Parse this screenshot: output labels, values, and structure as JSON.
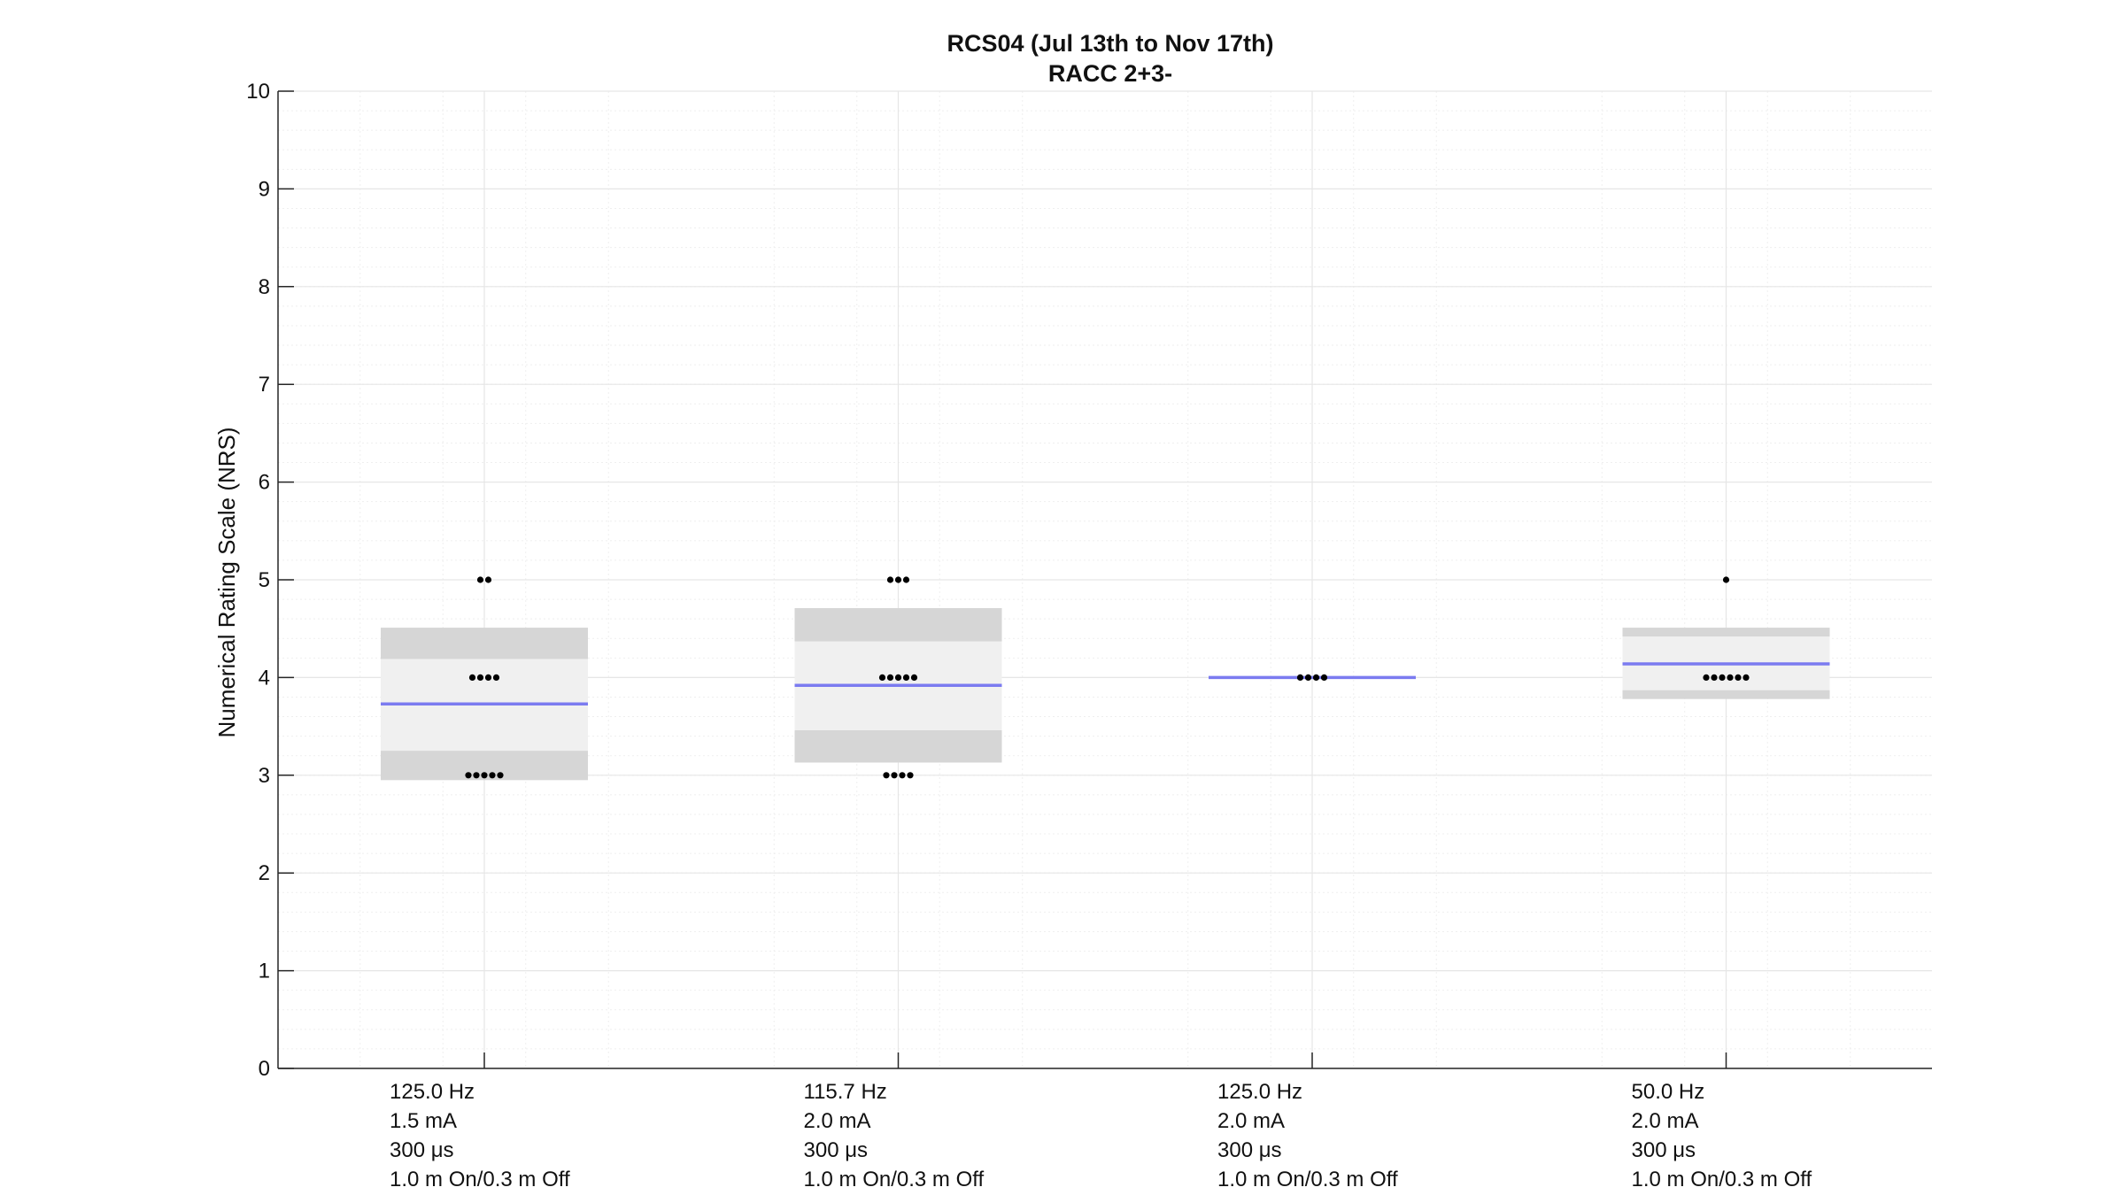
{
  "chart_data": {
    "type": "box",
    "title": "RCS04 (Jul 13th to Nov 17th)",
    "subtitle": "RACC 2+3-",
    "xlabel": "",
    "ylabel": "Numerical Rating Scale (NRS)",
    "ylim": [
      0,
      10
    ],
    "yticks": [
      0,
      1,
      2,
      3,
      4,
      5,
      6,
      7,
      8,
      9,
      10
    ],
    "grid": true,
    "minor_grid": true,
    "colors": {
      "mean_line": "#7b7bf0",
      "ci_band": "#f0f0f0",
      "sd_band": "#d6d6d6",
      "points": "#000000",
      "grid": "#e6e6e6",
      "axis": "#262626"
    },
    "categories": [
      {
        "lines": [
          "125.0 Hz",
          "1.5 mA",
          "300 μs",
          "1.0 m On/0.3 m Off"
        ],
        "mean": 3.73,
        "sd_band": [
          2.95,
          4.51
        ],
        "ci_band": [
          3.25,
          4.19
        ],
        "points": [
          {
            "y": 5,
            "count": 2
          },
          {
            "y": 4,
            "count": 4
          },
          {
            "y": 3,
            "count": 5
          }
        ]
      },
      {
        "lines": [
          "115.7 Hz",
          "2.0 mA",
          "300 μs",
          "1.0 m On/0.3 m Off"
        ],
        "mean": 3.92,
        "sd_band": [
          3.13,
          4.71
        ],
        "ci_band": [
          3.46,
          4.37
        ],
        "points": [
          {
            "y": 5,
            "count": 3
          },
          {
            "y": 4,
            "count": 5
          },
          {
            "y": 3,
            "count": 4
          }
        ]
      },
      {
        "lines": [
          "125.0 Hz",
          "2.0 mA",
          "300 μs",
          "1.0 m On/0.3 m Off"
        ],
        "mean": 4.0,
        "sd_band": [
          4.0,
          4.0
        ],
        "ci_band": [
          4.0,
          4.0
        ],
        "points": [
          {
            "y": 4,
            "count": 4
          }
        ]
      },
      {
        "lines": [
          "50.0 Hz",
          "2.0 mA",
          "300 μs",
          "1.0 m On/0.3 m Off"
        ],
        "mean": 4.14,
        "sd_band": [
          3.78,
          4.51
        ],
        "ci_band": [
          3.87,
          4.42
        ],
        "points": [
          {
            "y": 5,
            "count": 1
          },
          {
            "y": 4,
            "count": 6
          }
        ]
      }
    ]
  }
}
